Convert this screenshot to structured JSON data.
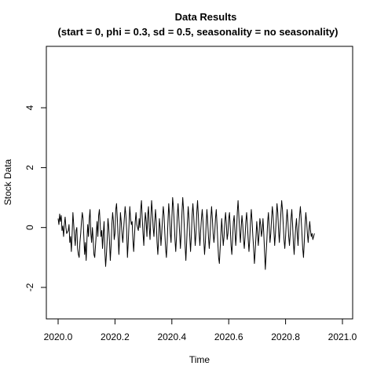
{
  "chart_data": {
    "type": "line",
    "title": "Data Results",
    "subtitle": "(start = 0,  phi = 0.3,  sd = 0.5,  seasonality = no seasonality)",
    "xlabel": "Time",
    "ylabel": "Stock Data",
    "xlim": [
      2020.0,
      2021.0
    ],
    "ylim": [
      -2.5,
      5.5
    ],
    "x_ticks": [
      2020.0,
      2020.2,
      2020.4,
      2020.6,
      2020.8,
      2021.0
    ],
    "x_tick_labels": [
      "2020.0",
      "2020.2",
      "2020.4",
      "2020.6",
      "2020.8",
      "2021.0"
    ],
    "y_ticks": [
      -2,
      0,
      2,
      4
    ],
    "y_tick_labels": [
      "-2",
      "0",
      "2",
      "4"
    ],
    "grid": false,
    "legend": "none",
    "line_color": "#000000",
    "series": [
      {
        "x_start": 2020.0,
        "x_step": 0.002739726,
        "values": [
          0.3,
          0.1,
          0.45,
          0.2,
          0.4,
          -0.1,
          0.05,
          -0.3,
          0.1,
          0.35,
          0.0,
          -0.2,
          -0.15,
          -0.1,
          0.1,
          -0.5,
          -0.3,
          -0.8,
          -0.2,
          0.5,
          0.1,
          -0.3,
          -0.6,
          -0.1,
          0.0,
          -0.7,
          -0.9,
          -1.0,
          -0.5,
          -0.2,
          0.2,
          0.5,
          0.3,
          -0.3,
          -0.9,
          -0.5,
          -1.1,
          -0.4,
          0.1,
          -0.3,
          0.3,
          0.6,
          -0.2,
          -0.5,
          0.0,
          -0.4,
          -0.9,
          -1.0,
          -0.6,
          -0.2,
          0.2,
          -0.3,
          0.4,
          0.6,
          0.1,
          -0.3,
          -0.1,
          -0.7,
          -0.2,
          0.2,
          -0.8,
          -1.3,
          -0.9,
          -0.4,
          0.3,
          0.0,
          -0.5,
          -1.1,
          -0.6,
          0.1,
          0.5,
          0.2,
          -0.4,
          -0.2,
          0.6,
          0.8,
          0.3,
          -0.3,
          -0.9,
          -0.3,
          0.5,
          0.2,
          -0.2,
          -0.5,
          -0.1,
          0.3,
          0.7,
          0.4,
          -0.1,
          -1.0,
          -0.5,
          0.1,
          0.7,
          0.3,
          0.1,
          0.2,
          -0.4,
          -0.8,
          -0.3,
          0.2,
          0.5,
          0.1,
          0.0,
          -0.1,
          0.3,
          0.0,
          0.6,
          0.9,
          0.3,
          -0.2,
          -0.6,
          0.1,
          0.5,
          0.2,
          -0.3,
          0.4,
          0.7,
          0.0,
          -0.4,
          0.3,
          0.9,
          0.5,
          0.0,
          -0.3,
          0.2,
          0.6,
          0.2,
          -0.5,
          -0.9,
          -0.4,
          0.3,
          0.0,
          -0.6,
          -0.2,
          0.3,
          0.7,
          0.4,
          -0.2,
          -0.7,
          -1.0,
          -0.5,
          0.2,
          0.8,
          0.4,
          -0.2,
          -0.5,
          0.3,
          1.0,
          0.7,
          0.2,
          -0.4,
          -0.8,
          -0.3,
          0.4,
          0.8,
          0.3,
          -0.2,
          -0.7,
          -0.2,
          0.5,
          1.0,
          0.6,
          0.0,
          -0.6,
          -1.1,
          -0.5,
          0.2,
          0.7,
          0.3,
          -0.3,
          -0.8,
          -0.3,
          0.4,
          0.8,
          0.4,
          -0.1,
          -0.6,
          -0.2,
          0.5,
          0.9,
          0.4,
          -0.2,
          -0.6,
          -0.1,
          0.3,
          0.6,
          0.2,
          -0.4,
          -0.9,
          -0.5,
          0.1,
          0.6,
          0.2,
          -0.3,
          -0.7,
          -0.3,
          0.3,
          0.7,
          0.3,
          -0.2,
          -0.5,
          -0.2,
          0.3,
          0.6,
          0.1,
          -0.5,
          -1.0,
          -1.2,
          -0.7,
          -0.2,
          0.3,
          -0.2,
          -0.6,
          -0.3,
          0.2,
          0.5,
          0.1,
          -0.4,
          -0.2,
          0.3,
          0.5,
          0.0,
          -0.6,
          -0.9,
          -0.4,
          0.2,
          0.4,
          -0.1,
          -0.6,
          -0.2,
          0.5,
          0.9,
          0.4,
          -0.1,
          -0.5,
          0.0,
          0.4,
          0.1,
          -0.4,
          -0.7,
          -0.3,
          0.2,
          0.5,
          0.1,
          -0.4,
          -0.8,
          -0.4,
          0.2,
          0.6,
          0.2,
          -0.3,
          -0.7,
          -1.2,
          -0.8,
          -0.3,
          0.2,
          -0.2,
          -0.6,
          -0.2,
          0.3,
          0.1,
          -0.3,
          -0.1,
          0.3,
          -0.2,
          -0.8,
          -1.4,
          -0.9,
          -0.4,
          0.2,
          0.5,
          0.0,
          -0.5,
          -0.2,
          0.3,
          0.7,
          0.4,
          -0.1,
          -0.6,
          -0.2,
          0.3,
          0.8,
          0.5,
          -0.1,
          -0.5,
          0.0,
          0.5,
          0.9,
          0.6,
          0.1,
          -0.4,
          -0.7,
          -0.3,
          0.2,
          0.6,
          0.2,
          -0.3,
          -0.6,
          -0.2,
          0.3,
          0.6,
          0.1,
          -0.5,
          -0.9,
          -0.4,
          0.0,
          0.3,
          -0.2,
          -0.6,
          0.0,
          0.4,
          0.7,
          0.3,
          -0.2,
          -0.7,
          -1.0,
          -0.5,
          0.1,
          0.5,
          0.2,
          -0.2,
          -0.5,
          -0.1,
          0.2,
          -0.1,
          -0.3,
          -0.2,
          -0.4,
          -0.3,
          -0.2
        ]
      }
    ]
  }
}
